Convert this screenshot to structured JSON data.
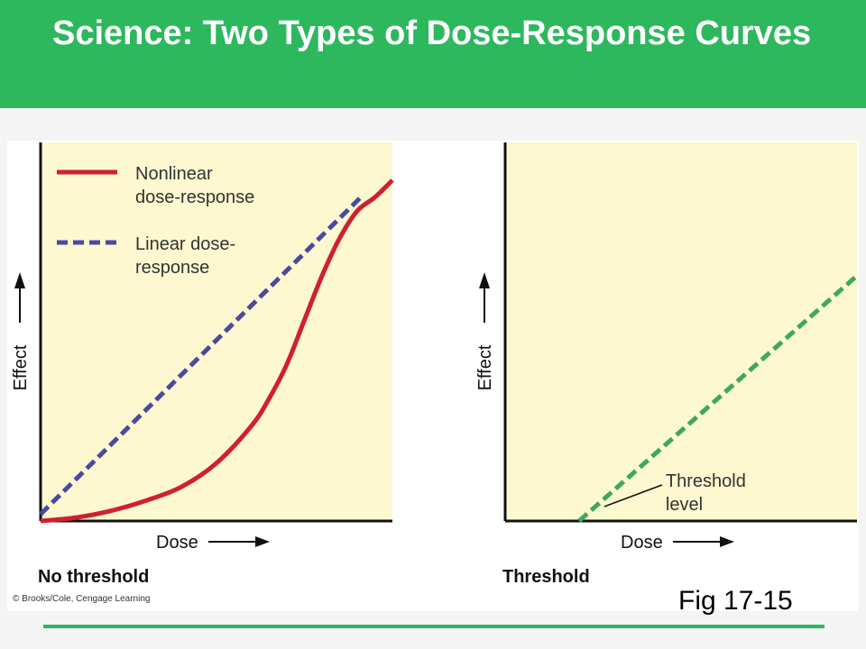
{
  "header": {
    "title": "Science: Two Types of Dose-Response Curves"
  },
  "figure": {
    "copyright": "© Brooks/Cole, Cengage Learning",
    "fig_label": "Fig 17-15"
  },
  "colors": {
    "header_bg": "#2db85e",
    "plot_bg": "#fdf8cf",
    "nonlinear": "#d0202f",
    "linear": "#4a49a0",
    "threshold": "#3ea95a"
  },
  "chart_data": [
    {
      "type": "line",
      "panel_label": "No threshold",
      "xlabel": "Dose",
      "ylabel": "Effect",
      "grid": false,
      "legend_placement": "top-left",
      "series": [
        {
          "name": "Nonlinear dose-response",
          "style": "solid",
          "color": "#d0202f",
          "x": [
            0.0,
            0.1,
            0.2,
            0.3,
            0.4,
            0.5,
            0.6,
            0.65,
            0.7,
            0.75,
            0.8,
            0.85,
            0.9,
            0.95,
            1.0
          ],
          "y": [
            0.0,
            0.01,
            0.03,
            0.06,
            0.1,
            0.17,
            0.28,
            0.36,
            0.46,
            0.59,
            0.72,
            0.83,
            0.91,
            0.95,
            1.0
          ]
        },
        {
          "name": "Linear dose-response",
          "style": "dashed",
          "color": "#4a49a0",
          "x": [
            0.0,
            0.91
          ],
          "y": [
            0.02,
            0.95
          ]
        }
      ]
    },
    {
      "type": "line",
      "panel_label": "Threshold",
      "xlabel": "Dose",
      "ylabel": "Effect",
      "grid": false,
      "annotations": [
        {
          "text": "Threshold level",
          "x": 0.21,
          "y": 0.0
        }
      ],
      "series": [
        {
          "name": "",
          "style": "dashed",
          "color": "#3ea95a",
          "x": [
            0.21,
            1.0
          ],
          "y": [
            0.0,
            0.72
          ]
        }
      ]
    }
  ]
}
